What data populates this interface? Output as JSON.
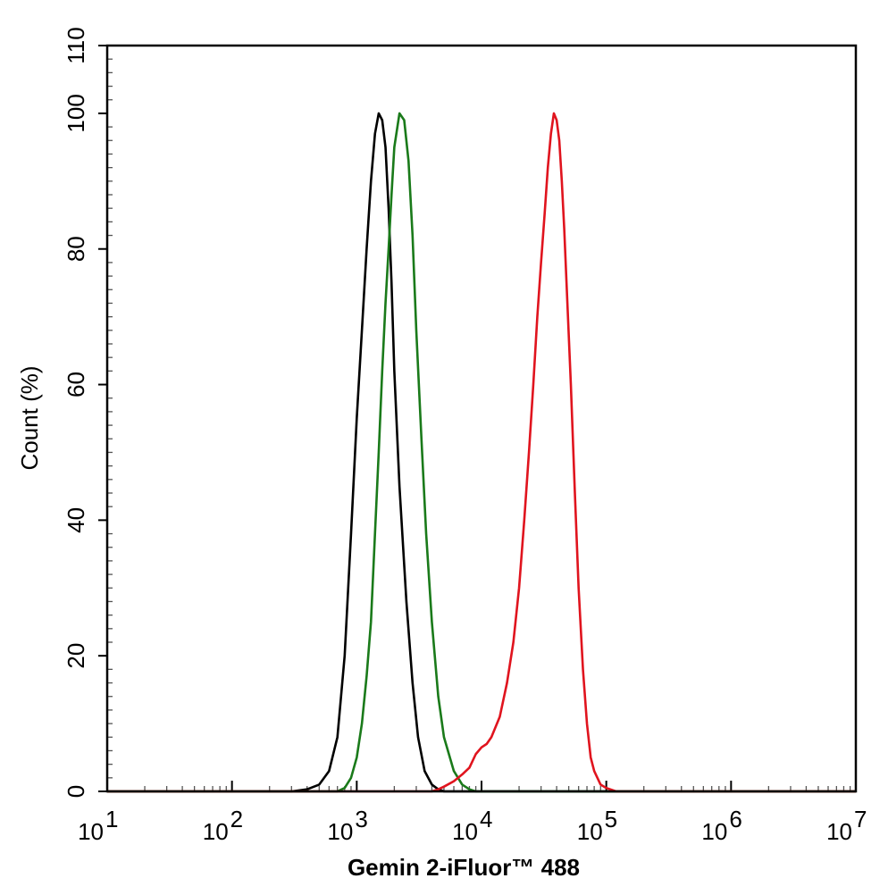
{
  "chart_data": {
    "type": "line",
    "xlabel": "Gemin 2-iFluor™ 488",
    "ylabel": "Count  (%)",
    "x_scale": "log",
    "xlim": [
      10,
      10000000
    ],
    "ylim": [
      0,
      110
    ],
    "x_ticks": [
      {
        "base": "10",
        "exp": "1",
        "value": 10
      },
      {
        "base": "10",
        "exp": "2",
        "value": 100
      },
      {
        "base": "10",
        "exp": "3",
        "value": 1000
      },
      {
        "base": "10",
        "exp": "4",
        "value": 10000
      },
      {
        "base": "10",
        "exp": "5",
        "value": 100000
      },
      {
        "base": "10",
        "exp": "6",
        "value": 1000000
      },
      {
        "base": "10",
        "exp": "7",
        "value": 10000000
      }
    ],
    "y_ticks": [
      "0",
      "20",
      "40",
      "60",
      "80",
      "100",
      "110"
    ],
    "grid": false,
    "legend": "none",
    "series": [
      {
        "color": "#000000",
        "points": [
          [
            10,
            0
          ],
          [
            300,
            0
          ],
          [
            400,
            0.3
          ],
          [
            500,
            1
          ],
          [
            600,
            3
          ],
          [
            700,
            8
          ],
          [
            800,
            20
          ],
          [
            900,
            38
          ],
          [
            1000,
            55
          ],
          [
            1100,
            68
          ],
          [
            1200,
            80
          ],
          [
            1300,
            90
          ],
          [
            1400,
            97
          ],
          [
            1500,
            100
          ],
          [
            1600,
            99
          ],
          [
            1700,
            95
          ],
          [
            1800,
            86
          ],
          [
            1900,
            75
          ],
          [
            2000,
            62
          ],
          [
            2200,
            45
          ],
          [
            2500,
            28
          ],
          [
            2800,
            16
          ],
          [
            3100,
            8
          ],
          [
            3500,
            3
          ],
          [
            4000,
            1
          ],
          [
            4500,
            0.3
          ],
          [
            5000,
            0
          ],
          [
            10000000,
            0
          ]
        ]
      },
      {
        "color": "#1a7a1a",
        "points": [
          [
            10,
            0
          ],
          [
            700,
            0
          ],
          [
            800,
            0.5
          ],
          [
            900,
            2
          ],
          [
            1000,
            5
          ],
          [
            1100,
            10
          ],
          [
            1200,
            17
          ],
          [
            1300,
            25
          ],
          [
            1400,
            38
          ],
          [
            1500,
            50
          ],
          [
            1600,
            62
          ],
          [
            1700,
            72
          ],
          [
            1800,
            80
          ],
          [
            1900,
            88
          ],
          [
            2000,
            95
          ],
          [
            2200,
            100
          ],
          [
            2400,
            99
          ],
          [
            2600,
            93
          ],
          [
            2800,
            82
          ],
          [
            3000,
            68
          ],
          [
            3300,
            52
          ],
          [
            3600,
            38
          ],
          [
            4000,
            25
          ],
          [
            4500,
            14
          ],
          [
            5000,
            8
          ],
          [
            6000,
            3
          ],
          [
            7000,
            1
          ],
          [
            8000,
            0.3
          ],
          [
            9000,
            0
          ],
          [
            10000000,
            0
          ]
        ]
      },
      {
        "color": "#e0141e",
        "points": [
          [
            10,
            0
          ],
          [
            4000,
            0
          ],
          [
            4500,
            0.3
          ],
          [
            5000,
            0.7
          ],
          [
            6000,
            1.5
          ],
          [
            7000,
            2.5
          ],
          [
            8000,
            3.5
          ],
          [
            9000,
            5.5
          ],
          [
            10000,
            6.5
          ],
          [
            11000,
            7
          ],
          [
            12000,
            8
          ],
          [
            14000,
            11
          ],
          [
            16000,
            16
          ],
          [
            18000,
            22
          ],
          [
            20000,
            30
          ],
          [
            22000,
            40
          ],
          [
            24000,
            50
          ],
          [
            26000,
            60
          ],
          [
            28000,
            70
          ],
          [
            30000,
            78
          ],
          [
            32000,
            85
          ],
          [
            34000,
            92
          ],
          [
            36000,
            97
          ],
          [
            38000,
            100
          ],
          [
            40000,
            99
          ],
          [
            42000,
            96
          ],
          [
            44000,
            90
          ],
          [
            46000,
            83
          ],
          [
            48000,
            75
          ],
          [
            52000,
            60
          ],
          [
            56000,
            44
          ],
          [
            60000,
            30
          ],
          [
            65000,
            18
          ],
          [
            70000,
            10
          ],
          [
            75000,
            5
          ],
          [
            80000,
            3
          ],
          [
            90000,
            1
          ],
          [
            100000,
            0.5
          ],
          [
            120000,
            0
          ],
          [
            10000000,
            0
          ]
        ]
      }
    ]
  }
}
